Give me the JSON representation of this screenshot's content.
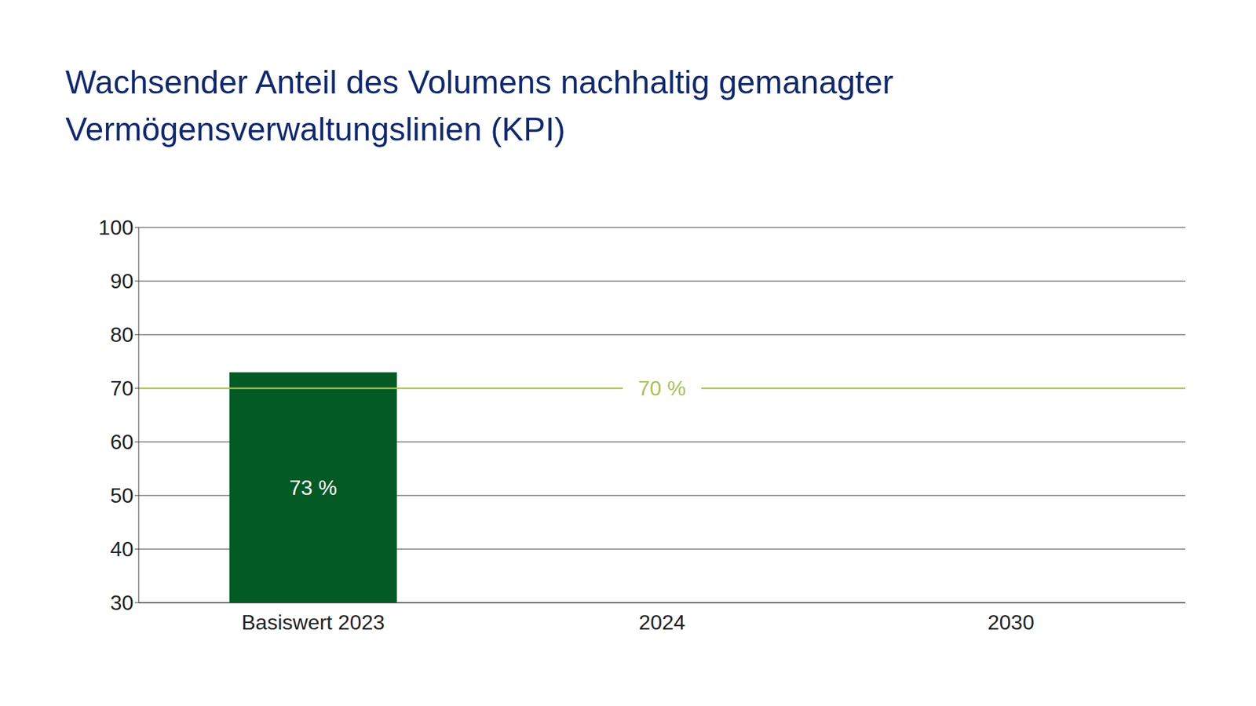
{
  "chart_data": {
    "type": "bar",
    "title": "Wachsender Anteil des Volumens nachhaltig gemanagter Vermögensverwaltungslinien (KPI)",
    "categories": [
      "Basiswert 2023",
      "2024",
      "2030"
    ],
    "values": [
      73,
      null,
      null
    ],
    "value_labels": [
      "73 %",
      null,
      null
    ],
    "data_labels": true,
    "color": "#035a24",
    "ylim": [
      30,
      100
    ],
    "yticks": [
      30,
      40,
      50,
      60,
      70,
      80,
      90,
      100
    ],
    "grid": true,
    "target": {
      "value": 70,
      "label": "70 %",
      "color": "#a8c256"
    }
  }
}
